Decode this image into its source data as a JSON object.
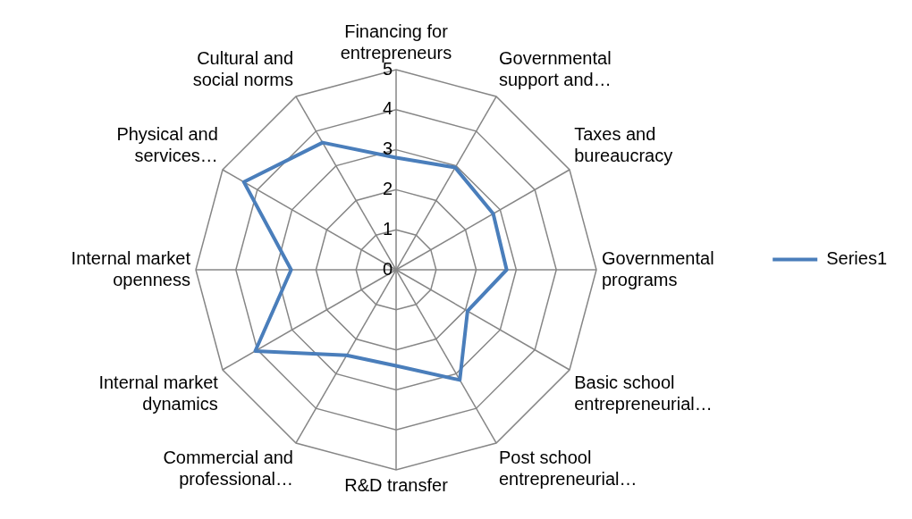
{
  "chart_data": {
    "type": "radar",
    "categories": [
      "Financing for entrepreneurs",
      "Governmental support and…",
      "Taxes and bureaucracy",
      "Governmental programs",
      "Basic school entrepreneurial…",
      "Post school entrepreneurial…",
      "R&D transfer",
      "Commercial and professional…",
      "Internal market dynamics",
      "Internal market openness",
      "Physical and services…",
      "Cultural and social norms"
    ],
    "series": [
      {
        "name": "Series1",
        "color": "#4a7ebb",
        "values": [
          2.8,
          2.95,
          2.8,
          2.76,
          2.06,
          3.18,
          2.4,
          2.47,
          4.06,
          2.62,
          4.39,
          3.67
        ]
      }
    ],
    "ylim": [
      0,
      5
    ],
    "yticks": [
      0,
      1,
      2,
      3,
      4,
      5
    ],
    "grid": true,
    "legend": "right",
    "marker": "none"
  }
}
